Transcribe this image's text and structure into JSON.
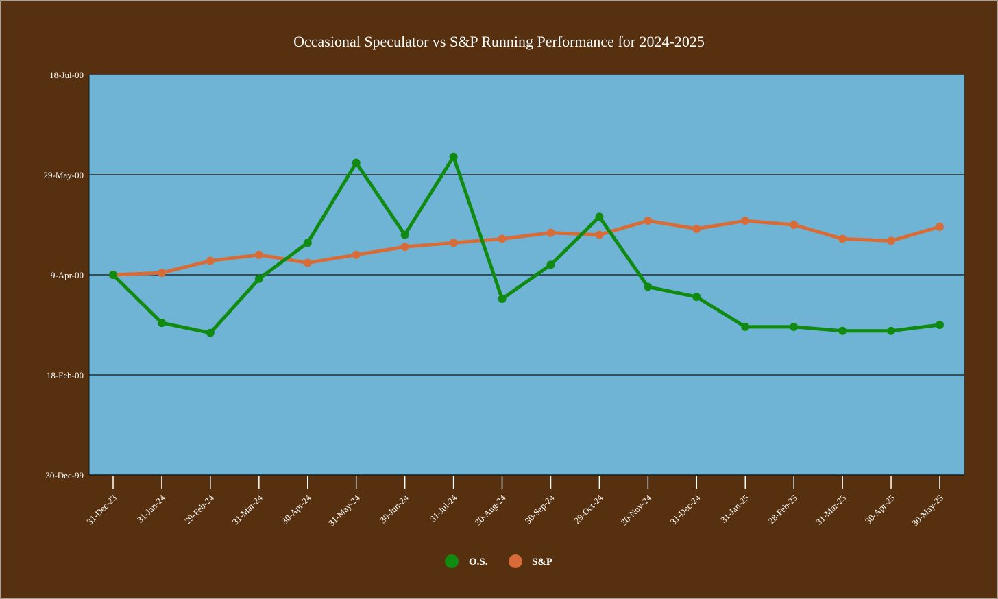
{
  "chart_data": {
    "type": "line",
    "title": "Occasional Speculator  vs S&P Running Performance for 2024-2025",
    "xlabel": "",
    "ylabel": "",
    "categories": [
      "31-Dec-23",
      "31-Jan-24",
      "29-Feb-24",
      "31-Mar-24",
      "30-Apr-24",
      "31-May-24",
      "30-Jun-24",
      "31-Jul-24",
      "30-Aug-24",
      "30-Sep-24",
      "29-Oct-24",
      "30-Nov-24",
      "31-Dec-24",
      "31-Jan-25",
      "28-Feb-25",
      "31-Mar-25",
      "30-Apr-25",
      "30-May-25"
    ],
    "y_ticks": [
      "30-Dec-99",
      "18-Feb-00",
      "9-Apr-00",
      "29-May-00",
      "18-Jul-00"
    ],
    "ylim": [
      0,
      200
    ],
    "grid": true,
    "legend_position": "bottom-center",
    "series": [
      {
        "name": "O.S.",
        "color": "#108a10",
        "values": [
          100,
          76,
          71,
          98,
          116,
          156,
          120,
          159,
          88,
          105,
          129,
          94,
          89,
          74,
          74,
          72,
          72,
          75
        ]
      },
      {
        "name": "S&P",
        "color": "#d86c38",
        "values": [
          100,
          101,
          107,
          110,
          106,
          110,
          114,
          116,
          118,
          121,
          120,
          127,
          123,
          127,
          125,
          118,
          117,
          124
        ]
      }
    ]
  },
  "colors": {
    "background": "#56300f",
    "plot_area": "#6fb4d4",
    "gridline": "#111111",
    "text": "#ffffff"
  }
}
